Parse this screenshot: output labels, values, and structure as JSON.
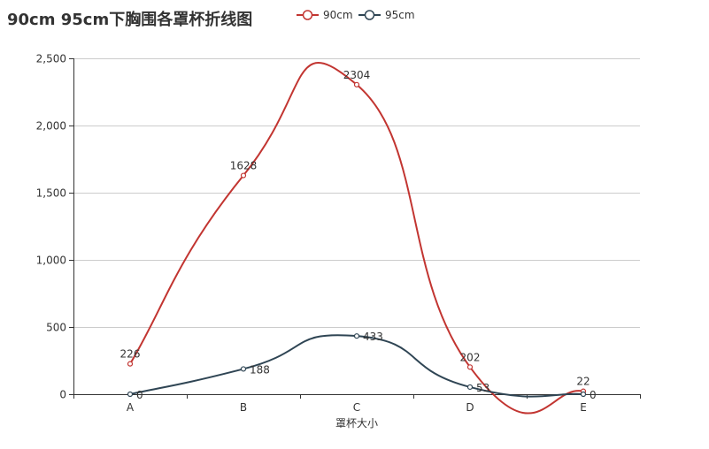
{
  "chart_data": {
    "type": "line",
    "title": "90cm 95cm下胸围各罩杯折线图",
    "xlabel": "罩杯大小",
    "ylabel": "",
    "categories": [
      "A",
      "B",
      "C",
      "D",
      "E"
    ],
    "ylim": [
      0,
      2500
    ],
    "yticks": [
      0,
      500,
      1000,
      1500,
      2000,
      2500
    ],
    "ytick_labels": [
      "0",
      "500",
      "1,000",
      "1,500",
      "2,000",
      "2,500"
    ],
    "grid": true,
    "smooth": true,
    "legend_position": "top-center",
    "series": [
      {
        "name": "90cm",
        "color": "#c23531",
        "values": [
          226,
          1628,
          2304,
          202,
          22
        ]
      },
      {
        "name": "95cm",
        "color": "#2f4554",
        "values": [
          0,
          188,
          433,
          53,
          0
        ]
      }
    ]
  }
}
